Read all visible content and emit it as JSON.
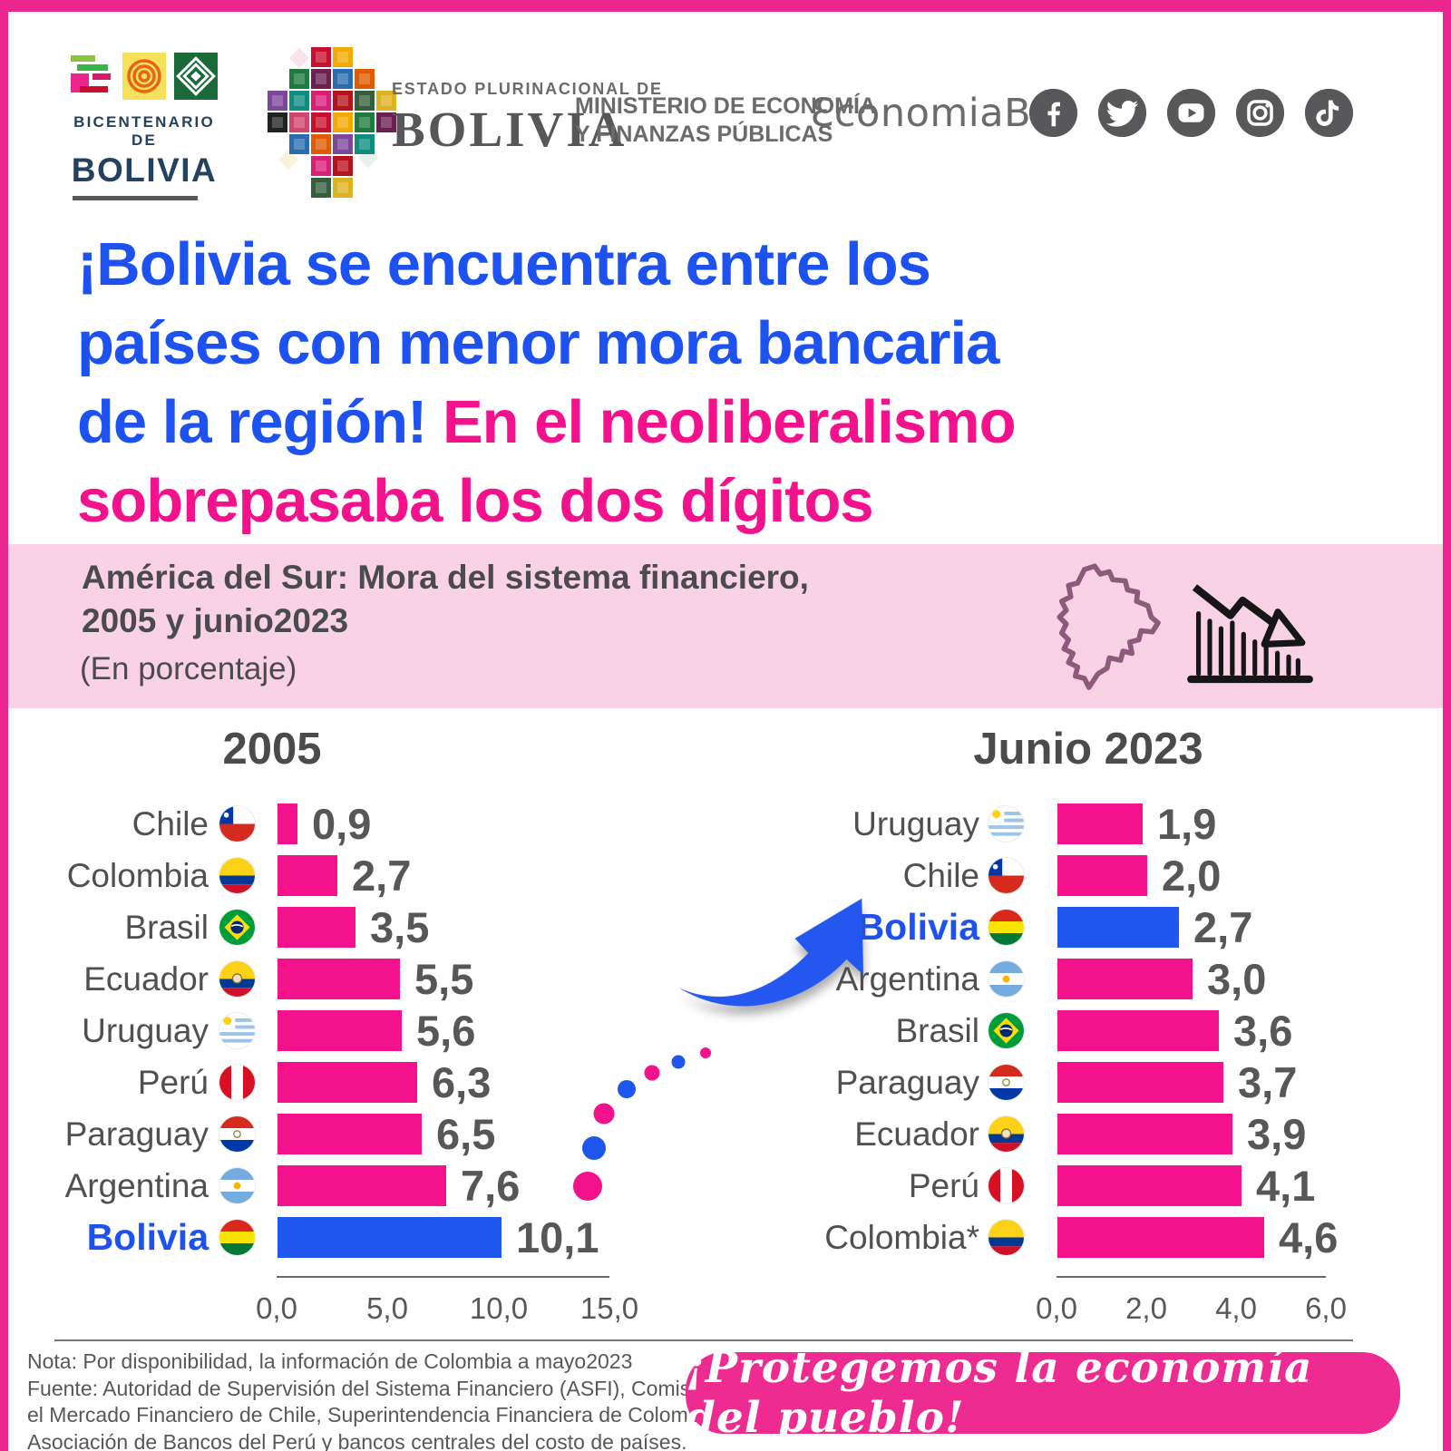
{
  "page": {
    "background": "#FFFFFF",
    "frame_color": "#EC268F"
  },
  "header": {
    "bicentenario": {
      "top": "BICENTENARIO DE",
      "bottom": "BOLIVIA"
    },
    "estado": {
      "small": "ESTADO PLURINACIONAL DE",
      "big": "BOLIVIA"
    },
    "ministerio": {
      "line1": "MINISTERIO DE ECONOMÍA",
      "line2": "Y FINANZAS PÚBLICAS"
    },
    "social_handle": "ƐconomiaBo",
    "social_icons": [
      "facebook",
      "twitter",
      "youtube",
      "instagram",
      "tiktok"
    ]
  },
  "title": {
    "lines": [
      {
        "segments": [
          {
            "text": "¡Bolivia se encuentra entre los",
            "color": "blue"
          }
        ]
      },
      {
        "segments": [
          {
            "text": "países con menor mora bancaria",
            "color": "blue"
          }
        ]
      },
      {
        "segments": [
          {
            "text": "de la región! ",
            "color": "blue"
          },
          {
            "text": "En el neoliberalismo",
            "color": "pink"
          }
        ]
      },
      {
        "segments": [
          {
            "text": "sobrepasaba los dos dígitos",
            "color": "pink"
          }
        ]
      }
    ]
  },
  "banner": {
    "line1": "América del Sur: Mora del sistema financiero,",
    "line2": "2005 y junio2023",
    "sub": "(En porcentaje)",
    "icons": [
      "bolivia-map-icon",
      "declining-chart-icon"
    ]
  },
  "chart_data": [
    {
      "type": "bar",
      "orientation": "horizontal",
      "title": "2005",
      "categories": [
        "Chile",
        "Colombia",
        "Brasil",
        "Ecuador",
        "Uruguay",
        "Perú",
        "Paraguay",
        "Argentina",
        "Bolivia"
      ],
      "values": [
        0.9,
        2.7,
        3.5,
        5.5,
        5.6,
        6.3,
        6.5,
        7.6,
        10.1
      ],
      "value_labels": [
        "0,9",
        "2,7",
        "3,5",
        "5,5",
        "5,6",
        "6,3",
        "6,5",
        "7,6",
        "10,1"
      ],
      "flag_icons": [
        "chile-flag",
        "colombia-flag",
        "brasil-flag",
        "ecuador-flag",
        "uruguay-flag",
        "peru-flag",
        "paraguay-flag",
        "argentina-flag",
        "bolivia-flag"
      ],
      "highlight_category": "Bolivia",
      "bar_color": "#F4118C",
      "highlight_color": "#1E56EE",
      "xlim": [
        0,
        15
      ],
      "xtick_labels": [
        "0,0",
        "5,0",
        "10,0",
        "15,0"
      ],
      "grid": false,
      "legend": "none"
    },
    {
      "type": "bar",
      "orientation": "horizontal",
      "title": "Junio 2023",
      "categories": [
        "Uruguay",
        "Chile",
        "Bolivia",
        "Argentina",
        "Brasil",
        "Paraguay",
        "Ecuador",
        "Perú",
        "Colombia*"
      ],
      "values": [
        1.9,
        2.0,
        2.7,
        3.0,
        3.6,
        3.7,
        3.9,
        4.1,
        4.6
      ],
      "value_labels": [
        "1,9",
        "2,0",
        "2,7",
        "3,0",
        "3,6",
        "3,7",
        "3,9",
        "4,1",
        "4,6"
      ],
      "flag_icons": [
        "uruguay-flag",
        "chile-flag",
        "bolivia-flag",
        "argentina-flag",
        "brasil-flag",
        "paraguay-flag",
        "ecuador-flag",
        "peru-flag",
        "colombia-flag"
      ],
      "highlight_category": "Bolivia",
      "bar_color": "#F4118C",
      "highlight_color": "#1E56EE",
      "xlim": [
        0,
        6
      ],
      "xtick_labels": [
        "0,0",
        "2,0",
        "4,0",
        "6,0"
      ],
      "grid": false,
      "legend": "none"
    }
  ],
  "footer": {
    "note_lines": [
      "Nota: Por disponibilidad, la información de Colombia a mayo2023",
      "Fuente: Autoridad de Supervisión del Sistema Financiero (ASFI), Comisión para",
      "el Mercado Financiero de Chile, Superintendencia Financiera de Colombia,",
      "Asociación de Bancos del Perú y bancos centrales del costo de países."
    ],
    "badge": "¡Protegemos la economía del pueblo!"
  },
  "colors": {
    "bar_pink": "#F4118C",
    "bar_blue": "#1E56EE",
    "title_blue": "#1D52F0",
    "title_pink": "#F4118C",
    "text_gray": "#58585A",
    "banner_bg": "#F9D2E5",
    "badge_pink": "#EE2B90",
    "frame_pink": "#EC268F"
  }
}
